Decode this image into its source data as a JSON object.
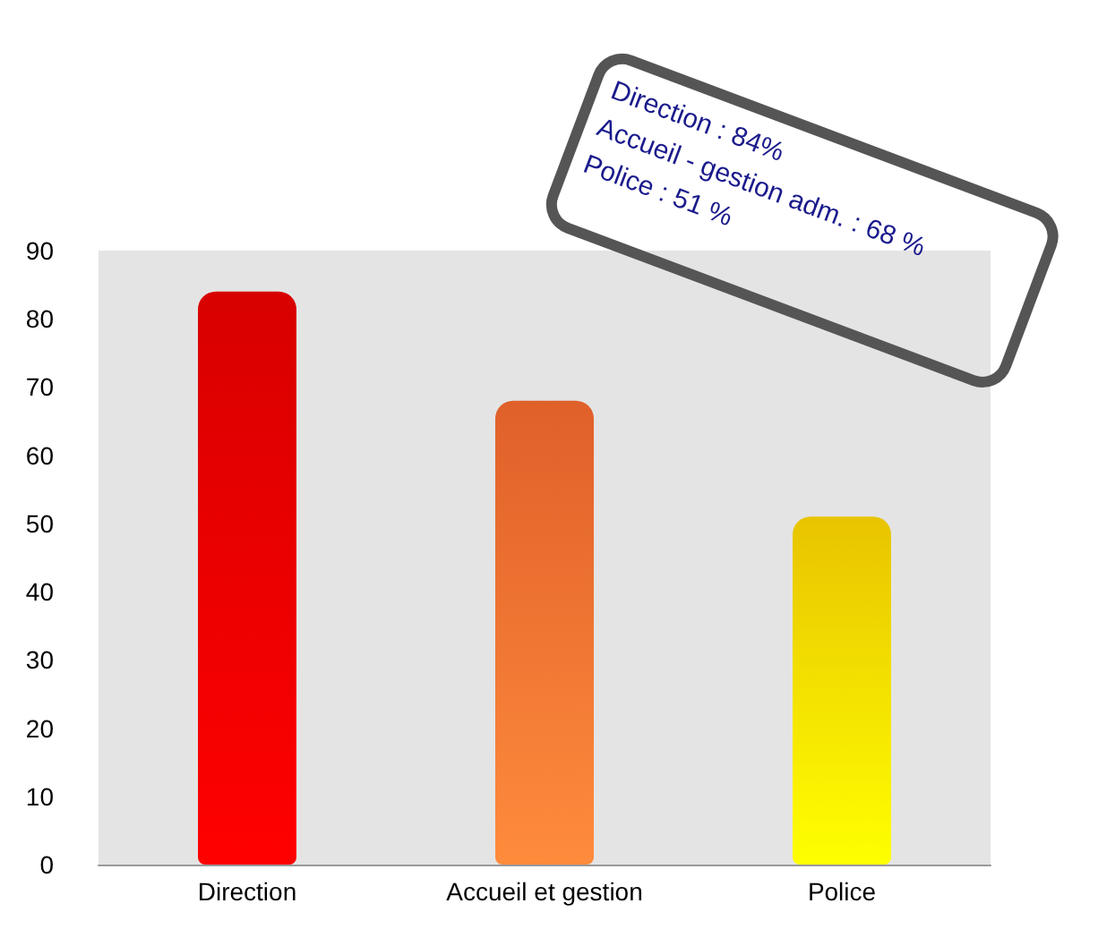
{
  "chart_data": {
    "type": "bar",
    "categories": [
      "Direction",
      "Accueil et gestion",
      "Police"
    ],
    "values": [
      84,
      68,
      51
    ],
    "colors": [
      "#d80000",
      "#e0602a",
      "#e8c400"
    ],
    "ylim": [
      0,
      90
    ],
    "yticks": [
      0,
      10,
      20,
      30,
      40,
      50,
      60,
      70,
      80,
      90
    ],
    "grid": false,
    "annotations": [
      "Direction : 84%",
      "Accueil - gestion adm. : 68 %",
      "Police : 51 %"
    ]
  }
}
